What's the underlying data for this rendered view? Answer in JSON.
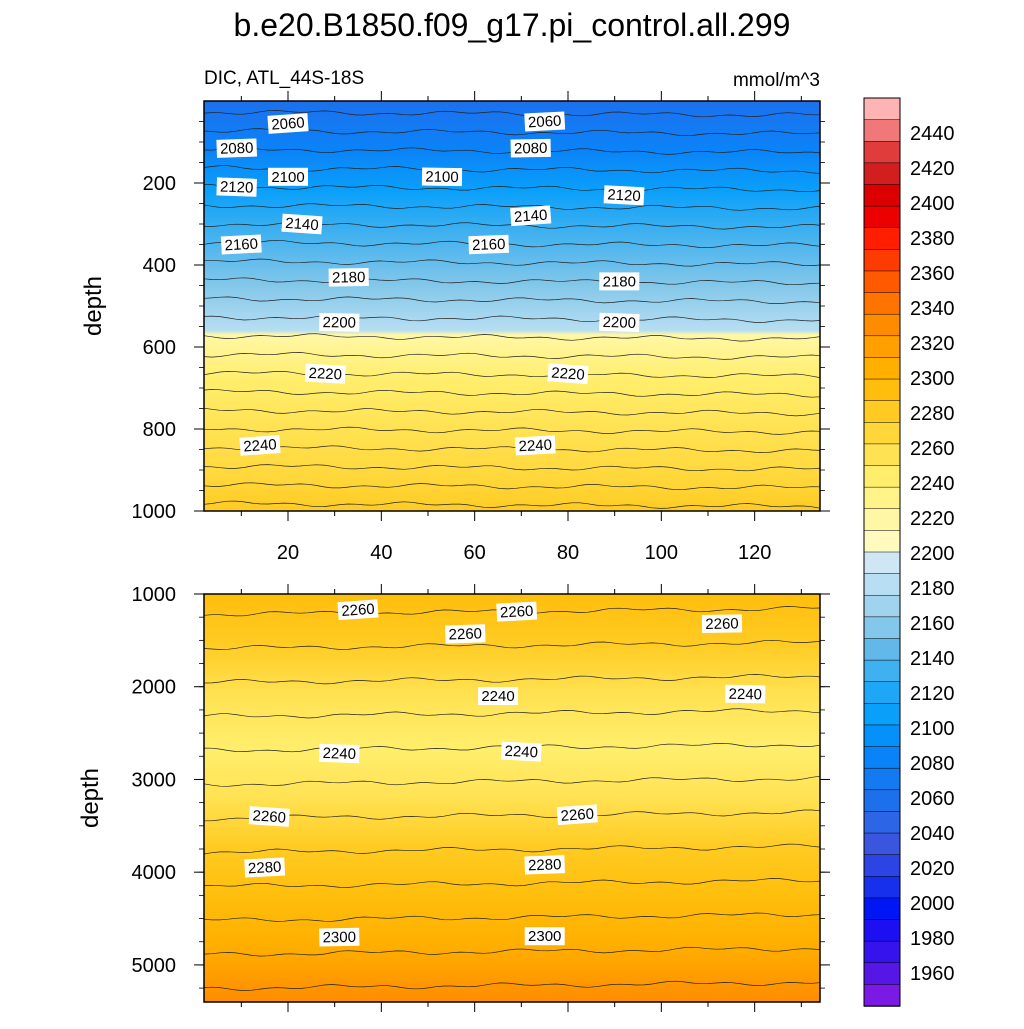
{
  "title": "b.e20.B1850.f09_g17.pi_control.all.299",
  "chart_data": [
    {
      "type": "contour",
      "left_label": "DIC, ATL_44S-18S",
      "right_label": "mmol/m^3",
      "ylabel": "depth",
      "x_range": [
        2,
        134
      ],
      "y_range": [
        0,
        1000
      ],
      "y_reversed": true,
      "x_ticks": [
        20,
        40,
        60,
        80,
        100,
        120
      ],
      "y_ticks": [
        200,
        400,
        600,
        800,
        1000
      ],
      "contour_labels": [
        {
          "text": "2060",
          "x": 20,
          "y": 55
        },
        {
          "text": "2060",
          "x": 75,
          "y": 50
        },
        {
          "text": "2080",
          "x": 9,
          "y": 115
        },
        {
          "text": "2080",
          "x": 72,
          "y": 115
        },
        {
          "text": "2100",
          "x": 20,
          "y": 185
        },
        {
          "text": "2100",
          "x": 53,
          "y": 185
        },
        {
          "text": "2120",
          "x": 9,
          "y": 210
        },
        {
          "text": "2120",
          "x": 92,
          "y": 230
        },
        {
          "text": "2140",
          "x": 23,
          "y": 300
        },
        {
          "text": "2140",
          "x": 72,
          "y": 280
        },
        {
          "text": "2160",
          "x": 10,
          "y": 350
        },
        {
          "text": "2160",
          "x": 63,
          "y": 350
        },
        {
          "text": "2180",
          "x": 33,
          "y": 430
        },
        {
          "text": "2180",
          "x": 91,
          "y": 440
        },
        {
          "text": "2200",
          "x": 31,
          "y": 540
        },
        {
          "text": "2200",
          "x": 91,
          "y": 540
        },
        {
          "text": "2220",
          "x": 28,
          "y": 665
        },
        {
          "text": "2220",
          "x": 80,
          "y": 665
        },
        {
          "text": "2240",
          "x": 14,
          "y": 840
        },
        {
          "text": "2240",
          "x": 73,
          "y": 840
        }
      ]
    },
    {
      "type": "contour",
      "ylabel": "depth",
      "x_range": [
        2,
        134
      ],
      "y_range": [
        1000,
        5400
      ],
      "y_reversed": true,
      "y_ticks": [
        1000,
        2000,
        3000,
        4000,
        5000
      ],
      "contour_labels": [
        {
          "text": "2260",
          "x": 35,
          "y": 1170
        },
        {
          "text": "2260",
          "x": 69,
          "y": 1190
        },
        {
          "text": "2260",
          "x": 58,
          "y": 1430
        },
        {
          "text": "2260",
          "x": 113,
          "y": 1320
        },
        {
          "text": "2240",
          "x": 65,
          "y": 2100
        },
        {
          "text": "2240",
          "x": 118,
          "y": 2080
        },
        {
          "text": "2240",
          "x": 31,
          "y": 2720
        },
        {
          "text": "2240",
          "x": 70,
          "y": 2700
        },
        {
          "text": "2260",
          "x": 16,
          "y": 3400
        },
        {
          "text": "2260",
          "x": 82,
          "y": 3380
        },
        {
          "text": "2280",
          "x": 15,
          "y": 3950
        },
        {
          "text": "2280",
          "x": 75,
          "y": 3920
        },
        {
          "text": "2300",
          "x": 31,
          "y": 4700
        },
        {
          "text": "2300",
          "x": 75,
          "y": 4690
        }
      ]
    }
  ],
  "colorbar": {
    "labels": [
      "2440",
      "2420",
      "2400",
      "2380",
      "2360",
      "2340",
      "2320",
      "2300",
      "2280",
      "2260",
      "2240",
      "2220",
      "2200",
      "2180",
      "2160",
      "2140",
      "2120",
      "2100",
      "2080",
      "2060",
      "2040",
      "2020",
      "2000",
      "1980",
      "1960"
    ],
    "colors": [
      "#ffb4b4",
      "#f07878",
      "#e03c3c",
      "#d21e1e",
      "#dc0000",
      "#ec0000",
      "#ff1e00",
      "#ff3c00",
      "#ff5a00",
      "#ff7300",
      "#ff8c00",
      "#ff9f00",
      "#ffaf00",
      "#ffbe0c",
      "#ffcb22",
      "#ffd73a",
      "#ffe253",
      "#ffee6c",
      "#fff389",
      "#fff7a6",
      "#fffbbe",
      "#cfe7f5",
      "#b7def2",
      "#9fd3ee",
      "#83c7ea",
      "#62b8e8",
      "#3fb0f0",
      "#1ea7f6",
      "#0aa0fa",
      "#0691fa",
      "#0b83f8",
      "#137af2",
      "#1d70ec",
      "#2c65e6",
      "#3a56df",
      "#2d44e4",
      "#1630ec",
      "#0016f4",
      "#1c10f2",
      "#3612ec",
      "#5516e6",
      "#7a1ae4"
    ]
  }
}
